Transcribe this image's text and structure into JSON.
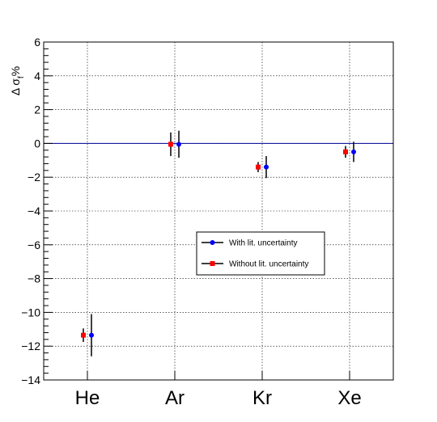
{
  "chart_data": {
    "type": "scatter",
    "ylabel_main": "Δ σ",
    "ylabel_sub": "f",
    "ylabel_suffix": "%",
    "categories": [
      "He",
      "Ar",
      "Kr",
      "Xe"
    ],
    "ylim": [
      -14,
      6
    ],
    "yticks": [
      6,
      4,
      2,
      0,
      -2,
      -4,
      -6,
      -8,
      -10,
      -12,
      -14
    ],
    "ytick_labels": [
      "6",
      "4",
      "2",
      "0",
      "−2",
      "−4",
      "−6",
      "−8",
      "−10",
      "−12",
      "−14"
    ],
    "grid": true,
    "reference_line": 0,
    "legend_position": "center-right",
    "series": [
      {
        "name": "With lit. uncertainty",
        "color": "#0000ff",
        "marker": "circle",
        "values": [
          -11.35,
          -0.05,
          -1.4,
          -0.5
        ],
        "errors": [
          1.25,
          0.8,
          0.65,
          0.6
        ]
      },
      {
        "name": "Without lit. uncertainty",
        "color": "#ff0000",
        "marker": "square",
        "values": [
          -11.35,
          -0.05,
          -1.4,
          -0.5
        ],
        "errors": [
          0.4,
          0.7,
          0.3,
          0.35
        ]
      }
    ]
  }
}
